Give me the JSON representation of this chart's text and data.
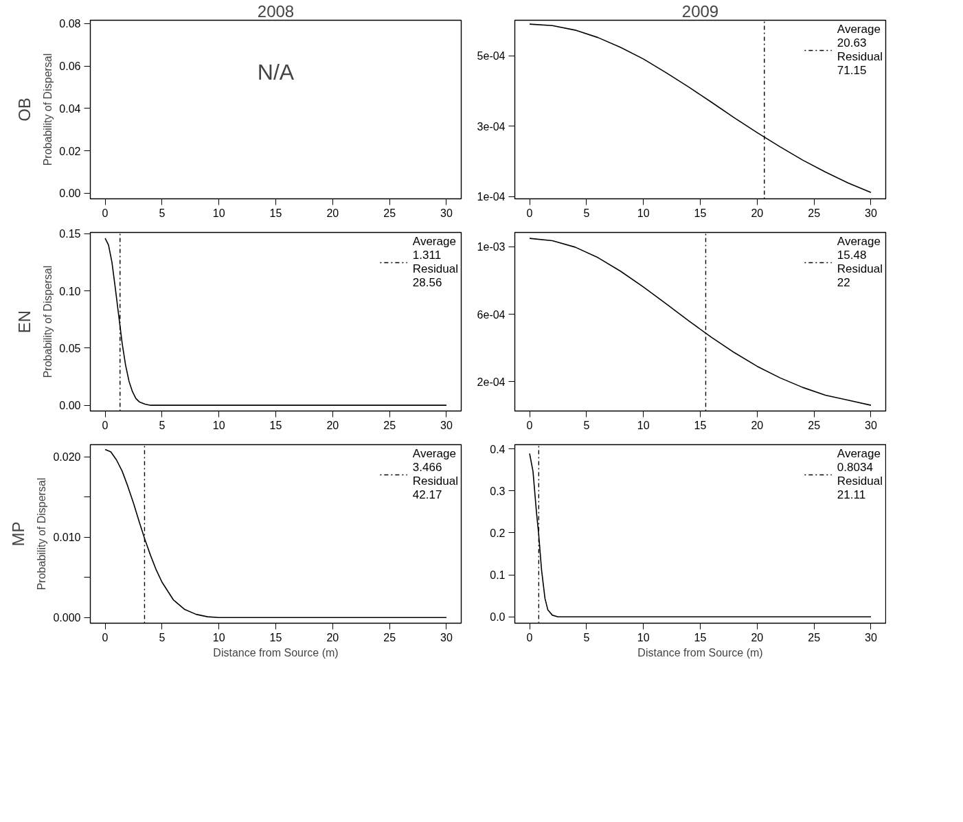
{
  "chart_data": [
    {
      "type": "line",
      "title": "2008",
      "ylabel": "Probability of Dispersal",
      "annotations": [
        "OB",
        "N/A"
      ],
      "xlim": [
        -1.3,
        31.3
      ],
      "ylim": [
        -0.0026,
        0.0816
      ],
      "xticks": [
        0,
        5,
        10,
        15,
        20,
        25,
        30
      ],
      "yticks": [
        {
          "value": 0,
          "label": "0.00"
        },
        {
          "value": 0.02,
          "label": "0.02"
        },
        {
          "value": 0.04,
          "label": "0.04"
        },
        {
          "value": 0.06,
          "label": "0.06"
        },
        {
          "value": 0.08,
          "label": "0.08"
        }
      ]
    },
    {
      "type": "line",
      "title": "2009",
      "x": [
        0,
        2,
        4,
        6,
        8,
        10,
        12,
        14,
        16,
        18,
        20,
        22,
        24,
        26,
        28,
        30
      ],
      "series": [
        {
          "color": "#000000",
          "values": [
            0.00059,
            0.000586,
            0.000573,
            0.000552,
            0.000524,
            0.000491,
            0.000452,
            0.000411,
            0.000368,
            0.000324,
            0.000282,
            0.000242,
            0.000204,
            0.00017,
            0.000139,
            0.000112
          ]
        }
      ],
      "xlim": [
        -1.3,
        31.3
      ],
      "ylim": [
        9.4e-05,
        0.000601
      ],
      "xticks": [
        0,
        5,
        10,
        15,
        20,
        25,
        30
      ],
      "yticks": [
        {
          "value": 0.0001,
          "label": "1e-04"
        },
        {
          "value": 0.0003,
          "label": "3e-04"
        },
        {
          "value": 0.0005,
          "label": "5e-04"
        }
      ],
      "ref_lines": [
        {
          "axis": "x",
          "value": 20.63,
          "label": "Average\n20.63\nResidual\n71.15",
          "color": "#000000",
          "line_style": "dashdot"
        }
      ],
      "legend": "top right"
    },
    {
      "type": "line",
      "ylabel": "Probability of Dispersal",
      "annotations": [
        "EN"
      ],
      "x": [
        0,
        0.3,
        0.6,
        0.9,
        1.2,
        1.5,
        1.8,
        2.1,
        2.4,
        2.7,
        3,
        3.5,
        4,
        5,
        10,
        20,
        30
      ],
      "series": [
        {
          "color": "#000000",
          "values": [
            0.146,
            0.14,
            0.125,
            0.102,
            0.078,
            0.054,
            0.035,
            0.021,
            0.012,
            0.006,
            0.003,
            0.001,
            0,
            0,
            0,
            0,
            0
          ]
        }
      ],
      "xlim": [
        -1.3,
        31.3
      ],
      "ylim": [
        -0.005,
        0.151
      ],
      "xticks": [
        0,
        5,
        10,
        15,
        20,
        25,
        30
      ],
      "yticks": [
        {
          "value": 0,
          "label": "0.00"
        },
        {
          "value": 0.05,
          "label": "0.05"
        },
        {
          "value": 0.1,
          "label": "0.10"
        },
        {
          "value": 0.15,
          "label": "0.15"
        }
      ],
      "ref_lines": [
        {
          "axis": "x",
          "value": 1.311,
          "label": "Average\n1.311\nResidual\n28.56",
          "color": "#000000",
          "line_style": "dashdot"
        }
      ],
      "legend": "top right"
    },
    {
      "type": "line",
      "x": [
        0,
        2,
        4,
        6,
        8,
        10,
        12,
        14,
        16,
        18,
        20,
        22,
        24,
        26,
        28,
        30
      ],
      "series": [
        {
          "color": "#000000",
          "values": [
            0.00105,
            0.001036,
            0.000998,
            0.000936,
            0.000855,
            0.000762,
            0.000662,
            0.00056,
            0.000462,
            0.000372,
            0.000291,
            0.000223,
            0.000166,
            0.00012,
            9e-05,
            6e-05
          ]
        }
      ],
      "xlim": [
        -1.3,
        31.3
      ],
      "ylim": [
        2.6e-05,
        0.001085
      ],
      "xticks": [
        0,
        5,
        10,
        15,
        20,
        25,
        30
      ],
      "yticks": [
        {
          "value": 0.0002,
          "label": "2e-04"
        },
        {
          "value": 0.0006,
          "label": "6e-04"
        },
        {
          "value": 0.001,
          "label": "1e-03"
        }
      ],
      "ref_lines": [
        {
          "axis": "x",
          "value": 15.48,
          "label": "Average\n15.48\nResidual\n22",
          "color": "#000000",
          "line_style": "dashdot"
        }
      ],
      "legend": "top right"
    },
    {
      "type": "line",
      "xlabel": "Distance from Source (m)",
      "ylabel": "Probability of Dispersal",
      "annotations": [
        "MP"
      ],
      "x": [
        0,
        0.5,
        1,
        1.5,
        2,
        2.5,
        3,
        3.5,
        4,
        4.5,
        5,
        6,
        7,
        8,
        9,
        10,
        15,
        20,
        30
      ],
      "series": [
        {
          "color": "#000000",
          "values": [
            0.0209,
            0.0206,
            0.0196,
            0.0182,
            0.0163,
            0.0142,
            0.0119,
            0.0097,
            0.0077,
            0.0059,
            0.0044,
            0.0022,
            0.001,
            0.0004,
            0.0001,
            0,
            0,
            0,
            0
          ]
        }
      ],
      "xlim": [
        -1.3,
        31.3
      ],
      "ylim": [
        -0.0007,
        0.0215
      ],
      "xticks": [
        0,
        5,
        10,
        15,
        20,
        25,
        30
      ],
      "yticks": [
        {
          "value": 0,
          "label": "0.000"
        },
        {
          "value": 0.005,
          "label": null
        },
        {
          "value": 0.01,
          "label": "0.010"
        },
        {
          "value": 0.015,
          "label": null
        },
        {
          "value": 0.02,
          "label": "0.020"
        }
      ],
      "ref_lines": [
        {
          "axis": "x",
          "value": 3.466,
          "label": "Average\n3.466\nResidual\n42.17",
          "color": "#000000",
          "line_style": "dashdot"
        }
      ],
      "legend": "top right"
    },
    {
      "type": "line",
      "xlabel": "Distance from Source (m)",
      "x": [
        0,
        0.3,
        0.6,
        0.8,
        1.05,
        1.35,
        1.6,
        2,
        2.5,
        5,
        10,
        20,
        30
      ],
      "series": [
        {
          "color": "#000000",
          "values": [
            0.389,
            0.346,
            0.25,
            0.196,
            0.112,
            0.044,
            0.017,
            0.004,
            0,
            0,
            0,
            0,
            0
          ]
        }
      ],
      "xlim": [
        -1.3,
        31.3
      ],
      "ylim": [
        -0.015,
        0.41
      ],
      "xticks": [
        0,
        5,
        10,
        15,
        20,
        25,
        30
      ],
      "yticks": [
        {
          "value": 0,
          "label": "0.0"
        },
        {
          "value": 0.1,
          "label": "0.1"
        },
        {
          "value": 0.2,
          "label": "0.2"
        },
        {
          "value": 0.3,
          "label": "0.3"
        },
        {
          "value": 0.4,
          "label": "0.4"
        }
      ],
      "ref_lines": [
        {
          "axis": "x",
          "value": 0.8034,
          "label": "Average\n0.8034\nResidual\n21.11",
          "color": "#000000",
          "line_style": "dashdot"
        }
      ],
      "legend": "top right"
    }
  ]
}
